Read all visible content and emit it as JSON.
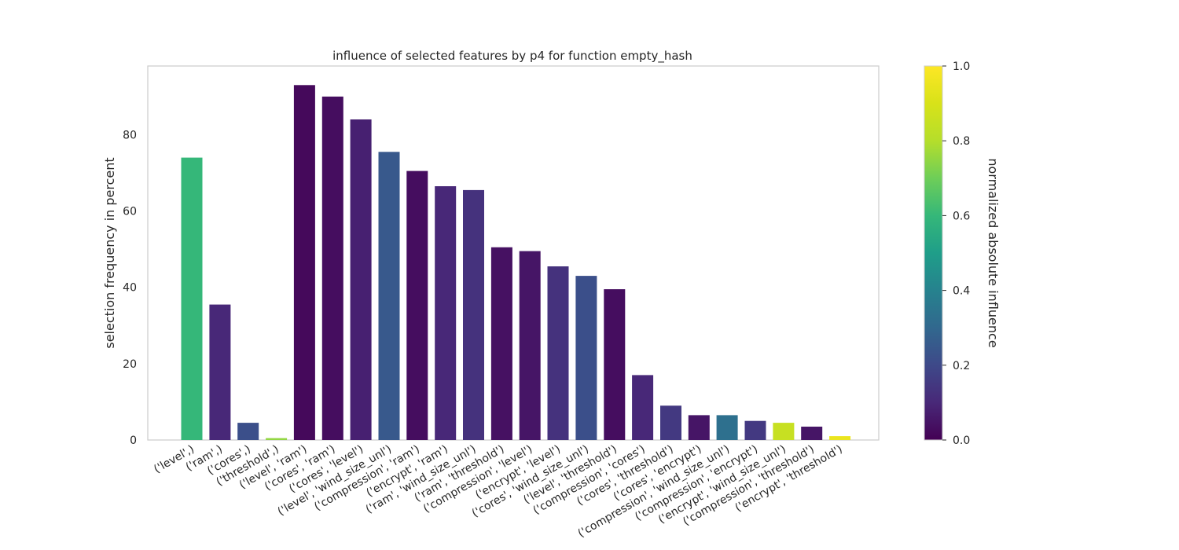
{
  "chart_data": {
    "type": "bar",
    "title": "influence of selected features by p4 for function empty_hash",
    "xlabel": "",
    "ylabel": "selection frequency in percent",
    "ylim": [
      0,
      98
    ],
    "yticks": [
      0,
      20,
      40,
      60,
      80
    ],
    "grid": false,
    "categories": [
      "('level',)",
      "('ram',)",
      "('cores',)",
      "('threshold',)",
      "('level', 'ram')",
      "('cores', 'ram')",
      "('cores', 'level')",
      "('level', 'wind_size_unl')",
      "('compression', 'ram')",
      "('encrypt', 'ram')",
      "('ram', 'wind_size_unl')",
      "('ram', 'threshold')",
      "('compression', 'level')",
      "('encrypt', 'level')",
      "('cores', 'wind_size_unl')",
      "('level', 'threshold')",
      "('compression', 'cores')",
      "('cores', 'threshold')",
      "('cores', 'encrypt')",
      "('compression', 'wind_size_unl')",
      "('compression', 'encrypt')",
      "('encrypt', 'wind_size_unl')",
      "('compression', 'threshold')",
      "('encrypt', 'threshold')"
    ],
    "values": [
      74,
      35.5,
      4.5,
      0.5,
      93,
      90,
      84,
      75.5,
      70.5,
      66.5,
      65.5,
      50.5,
      49.5,
      45.5,
      43,
      39.5,
      17,
      9,
      6.5,
      6.5,
      5,
      4.5,
      3.5,
      1
    ],
    "influence": [
      0.6,
      0.1,
      0.22,
      0.75,
      0.02,
      0.03,
      0.08,
      0.25,
      0.03,
      0.1,
      0.13,
      0.04,
      0.05,
      0.13,
      0.22,
      0.03,
      0.1,
      0.15,
      0.05,
      0.33,
      0.15,
      0.85,
      0.05,
      0.95
    ],
    "colorbar": {
      "label": "normalized absolute influence",
      "colormap": "viridis",
      "range": [
        0,
        1
      ],
      "ticks": [
        "0.0",
        "0.2",
        "0.4",
        "0.6",
        "0.8",
        "1.0"
      ]
    }
  }
}
